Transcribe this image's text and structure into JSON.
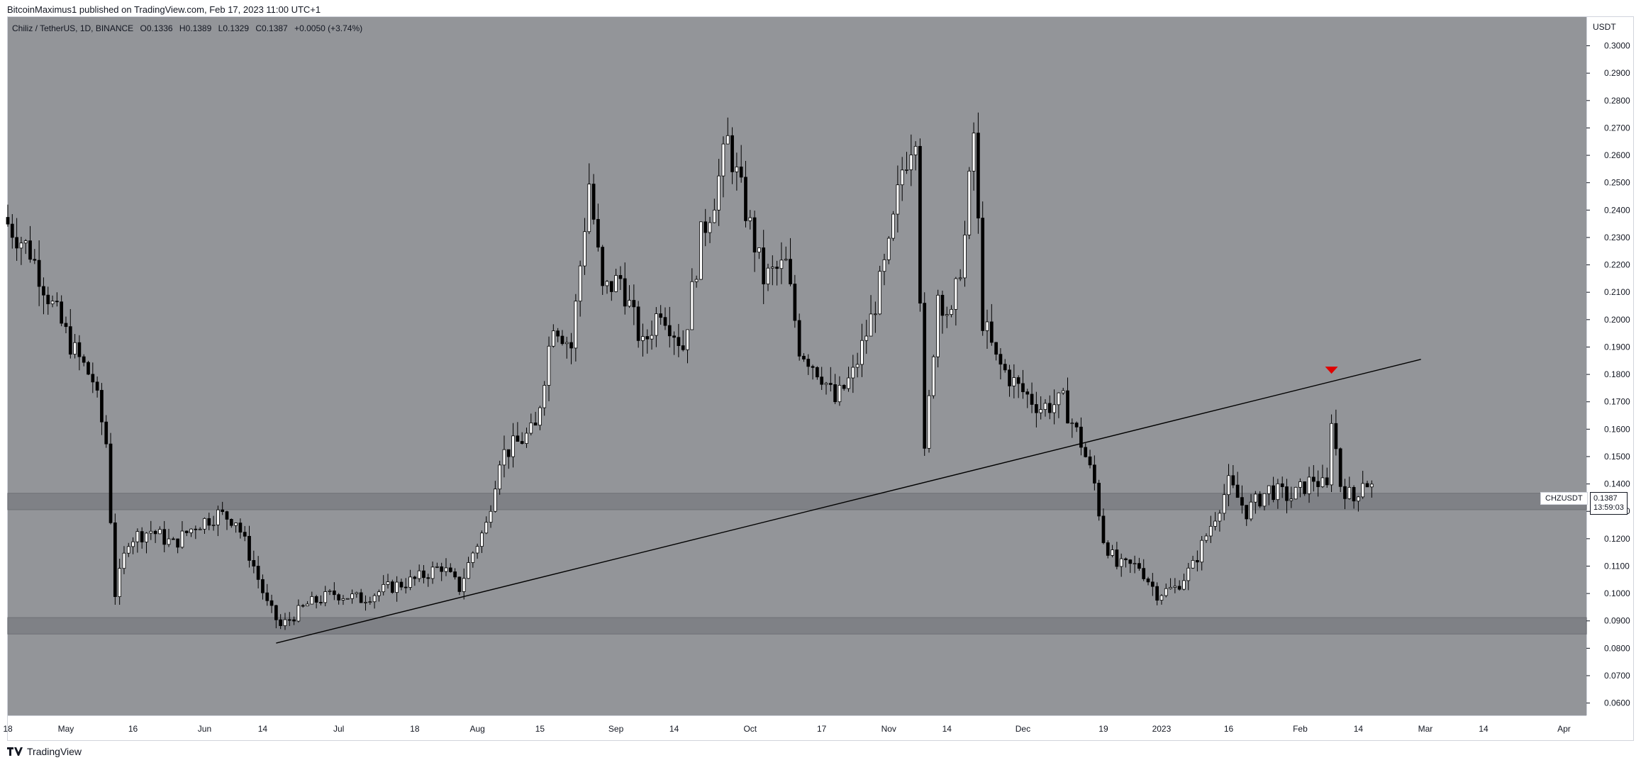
{
  "publisher_line": "BitcoinMaximus1 published on TradingView.com, Feb 17, 2023 11:00 UTC+1",
  "legend": {
    "pair": "Chiliz / TetherUS, 1D, BINANCE",
    "open_k": "O",
    "open_v": "0.1336",
    "high_k": "H",
    "high_v": "0.1389",
    "low_k": "L",
    "low_v": "0.1329",
    "close_k": "C",
    "close_v": "0.1387",
    "change": "+0.0050 (+3.74%)"
  },
  "unit_label": "USDT",
  "symbol_tag": "CHZUSDT",
  "price_tag": {
    "price": "0.1387",
    "countdown": "13:59:03"
  },
  "footer": {
    "brand": "TradingView"
  },
  "colors": {
    "plot_bg": "#939599",
    "up": "#ffffff",
    "down": "#000000",
    "zone": "#7f8186",
    "marker": "#e00000"
  },
  "chart_data": {
    "type": "candlestick",
    "y_ticks": [
      "0.3000",
      "0.2900",
      "0.2800",
      "0.2700",
      "0.2600",
      "0.2500",
      "0.2400",
      "0.2300",
      "0.2200",
      "0.2100",
      "0.2000",
      "0.1900",
      "0.1800",
      "0.1700",
      "0.1600",
      "0.1500",
      "0.1400",
      "0.1300",
      "0.1200",
      "0.1100",
      "0.1000",
      "0.0900",
      "0.0800",
      "0.0700",
      "0.0600"
    ],
    "y_tick_values": [
      0.3,
      0.29,
      0.28,
      0.27,
      0.26,
      0.25,
      0.24,
      0.23,
      0.22,
      0.21,
      0.2,
      0.19,
      0.18,
      0.17,
      0.16,
      0.15,
      0.14,
      0.13,
      0.12,
      0.11,
      0.1,
      0.09,
      0.08,
      0.07,
      0.06
    ],
    "x_ticks": [
      {
        "label": "18",
        "date": "2022-04-18"
      },
      {
        "label": "May",
        "date": "2022-05-01"
      },
      {
        "label": "16",
        "date": "2022-05-16"
      },
      {
        "label": "Jun",
        "date": "2022-06-01"
      },
      {
        "label": "14",
        "date": "2022-06-14"
      },
      {
        "label": "Jul",
        "date": "2022-07-01"
      },
      {
        "label": "18",
        "date": "2022-07-18"
      },
      {
        "label": "Aug",
        "date": "2022-08-01"
      },
      {
        "label": "15",
        "date": "2022-08-15"
      },
      {
        "label": "Sep",
        "date": "2022-09-01"
      },
      {
        "label": "14",
        "date": "2022-09-14"
      },
      {
        "label": "Oct",
        "date": "2022-10-01"
      },
      {
        "label": "17",
        "date": "2022-10-17"
      },
      {
        "label": "Nov",
        "date": "2022-11-01"
      },
      {
        "label": "14",
        "date": "2022-11-14"
      },
      {
        "label": "Dec",
        "date": "2022-12-01"
      },
      {
        "label": "19",
        "date": "2022-12-19"
      },
      {
        "label": "2023",
        "date": "2023-01-01"
      },
      {
        "label": "16",
        "date": "2023-01-16"
      },
      {
        "label": "Feb",
        "date": "2023-02-01"
      },
      {
        "label": "14",
        "date": "2023-02-14"
      },
      {
        "label": "Mar",
        "date": "2023-03-01"
      },
      {
        "label": "14",
        "date": "2023-03-14"
      },
      {
        "label": "Apr",
        "date": "2023-04-01"
      }
    ],
    "x_range": [
      "2022-04-18",
      "2023-04-06"
    ],
    "y_range": [
      0.0555,
      0.3105
    ],
    "zones": [
      {
        "y_low": 0.1306,
        "y_high": 0.1366
      },
      {
        "y_low": 0.0852,
        "y_high": 0.0912
      }
    ],
    "trendline": {
      "start": {
        "date": "2022-06-17",
        "y": 0.0819
      },
      "end": {
        "date": "2023-02-28",
        "y": 0.1855
      }
    },
    "marker": {
      "date": "2023-02-08",
      "y": 0.18
    },
    "closes": [
      {
        "date": "2022-04-18",
        "close": 0.235
      },
      {
        "date": "2022-04-23",
        "close": 0.225
      },
      {
        "date": "2022-04-28",
        "close": 0.205
      },
      {
        "date": "2022-05-03",
        "close": 0.188
      },
      {
        "date": "2022-05-07",
        "close": 0.178
      },
      {
        "date": "2022-05-10",
        "close": 0.155
      },
      {
        "date": "2022-05-12",
        "close": 0.1
      },
      {
        "date": "2022-05-15",
        "close": 0.12
      },
      {
        "date": "2022-05-20",
        "close": 0.123
      },
      {
        "date": "2022-05-25",
        "close": 0.118
      },
      {
        "date": "2022-05-30",
        "close": 0.125
      },
      {
        "date": "2022-06-04",
        "close": 0.129
      },
      {
        "date": "2022-06-08",
        "close": 0.127
      },
      {
        "date": "2022-06-12",
        "close": 0.11
      },
      {
        "date": "2022-06-15",
        "close": 0.096
      },
      {
        "date": "2022-06-18",
        "close": 0.088
      },
      {
        "date": "2022-06-24",
        "close": 0.096
      },
      {
        "date": "2022-06-30",
        "close": 0.1
      },
      {
        "date": "2022-07-06",
        "close": 0.098
      },
      {
        "date": "2022-07-12",
        "close": 0.102
      },
      {
        "date": "2022-07-18",
        "close": 0.105
      },
      {
        "date": "2022-07-24",
        "close": 0.11
      },
      {
        "date": "2022-07-28",
        "close": 0.102
      },
      {
        "date": "2022-07-31",
        "close": 0.115
      },
      {
        "date": "2022-08-03",
        "close": 0.125
      },
      {
        "date": "2022-08-06",
        "close": 0.15
      },
      {
        "date": "2022-08-10",
        "close": 0.155
      },
      {
        "date": "2022-08-14",
        "close": 0.16
      },
      {
        "date": "2022-08-18",
        "close": 0.2
      },
      {
        "date": "2022-08-22",
        "close": 0.19
      },
      {
        "date": "2022-08-26",
        "close": 0.25
      },
      {
        "date": "2022-08-29",
        "close": 0.21
      },
      {
        "date": "2022-09-02",
        "close": 0.215
      },
      {
        "date": "2022-09-07",
        "close": 0.19
      },
      {
        "date": "2022-09-11",
        "close": 0.205
      },
      {
        "date": "2022-09-16",
        "close": 0.19
      },
      {
        "date": "2022-09-20",
        "close": 0.23
      },
      {
        "date": "2022-09-23",
        "close": 0.245
      },
      {
        "date": "2022-09-26",
        "close": 0.265
      },
      {
        "date": "2022-09-30",
        "close": 0.24
      },
      {
        "date": "2022-10-04",
        "close": 0.215
      },
      {
        "date": "2022-10-09",
        "close": 0.22
      },
      {
        "date": "2022-10-12",
        "close": 0.19
      },
      {
        "date": "2022-10-17",
        "close": 0.18
      },
      {
        "date": "2022-10-20",
        "close": 0.17
      },
      {
        "date": "2022-10-24",
        "close": 0.18
      },
      {
        "date": "2022-10-28",
        "close": 0.2
      },
      {
        "date": "2022-11-01",
        "close": 0.225
      },
      {
        "date": "2022-11-04",
        "close": 0.255
      },
      {
        "date": "2022-11-07",
        "close": 0.27
      },
      {
        "date": "2022-11-09",
        "close": 0.15
      },
      {
        "date": "2022-11-12",
        "close": 0.21
      },
      {
        "date": "2022-11-15",
        "close": 0.2
      },
      {
        "date": "2022-11-18",
        "close": 0.23
      },
      {
        "date": "2022-11-20",
        "close": 0.268
      },
      {
        "date": "2022-11-22",
        "close": 0.2
      },
      {
        "date": "2022-11-25",
        "close": 0.185
      },
      {
        "date": "2022-11-30",
        "close": 0.175
      },
      {
        "date": "2022-12-05",
        "close": 0.168
      },
      {
        "date": "2022-12-10",
        "close": 0.17
      },
      {
        "date": "2022-12-14",
        "close": 0.155
      },
      {
        "date": "2022-12-17",
        "close": 0.14
      },
      {
        "date": "2022-12-19",
        "close": 0.12
      },
      {
        "date": "2022-12-22",
        "close": 0.11
      },
      {
        "date": "2022-12-27",
        "close": 0.11
      },
      {
        "date": "2022-12-31",
        "close": 0.1
      },
      {
        "date": "2023-01-04",
        "close": 0.102
      },
      {
        "date": "2023-01-08",
        "close": 0.11
      },
      {
        "date": "2023-01-12",
        "close": 0.125
      },
      {
        "date": "2023-01-16",
        "close": 0.14
      },
      {
        "date": "2023-01-20",
        "close": 0.13
      },
      {
        "date": "2023-01-25",
        "close": 0.138
      },
      {
        "date": "2023-01-30",
        "close": 0.135
      },
      {
        "date": "2023-02-04",
        "close": 0.142
      },
      {
        "date": "2023-02-07",
        "close": 0.138
      },
      {
        "date": "2023-02-08",
        "close": 0.165
      },
      {
        "date": "2023-02-10",
        "close": 0.14
      },
      {
        "date": "2023-02-13",
        "close": 0.134
      },
      {
        "date": "2023-02-15",
        "close": 0.142
      },
      {
        "date": "2023-02-17",
        "close": 0.1387
      }
    ]
  }
}
